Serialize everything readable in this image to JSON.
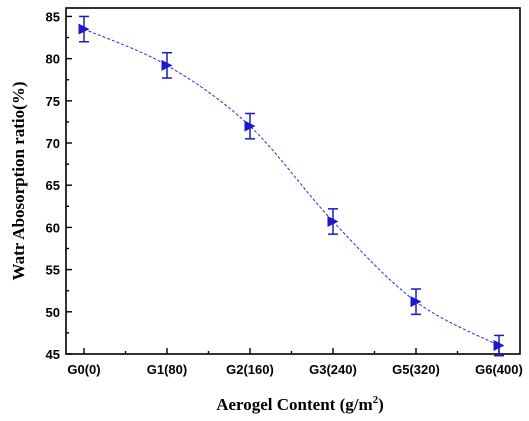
{
  "chart_data": {
    "type": "line",
    "categories": [
      "G0(0)",
      "G1(80)",
      "G2(160)",
      "G3(240)",
      "G5(320)",
      "G6(400)"
    ],
    "values": [
      83.5,
      79.2,
      72.0,
      60.7,
      51.2,
      46.0
    ],
    "error": [
      1.5,
      1.5,
      1.5,
      1.5,
      1.5,
      1.2
    ],
    "xlabel": "Aerogel Content (g/m",
    "xlabel_sup": "2",
    "xlabel_end": ")",
    "ylabel": "Watr Abosorption ratio(%)",
    "ylim": [
      45,
      86
    ],
    "yticks": [
      45,
      50,
      55,
      60,
      65,
      70,
      75,
      80,
      85
    ],
    "marker": "right-triangle",
    "line_style": "dashed",
    "color": "#1a1acc",
    "grid": false
  }
}
